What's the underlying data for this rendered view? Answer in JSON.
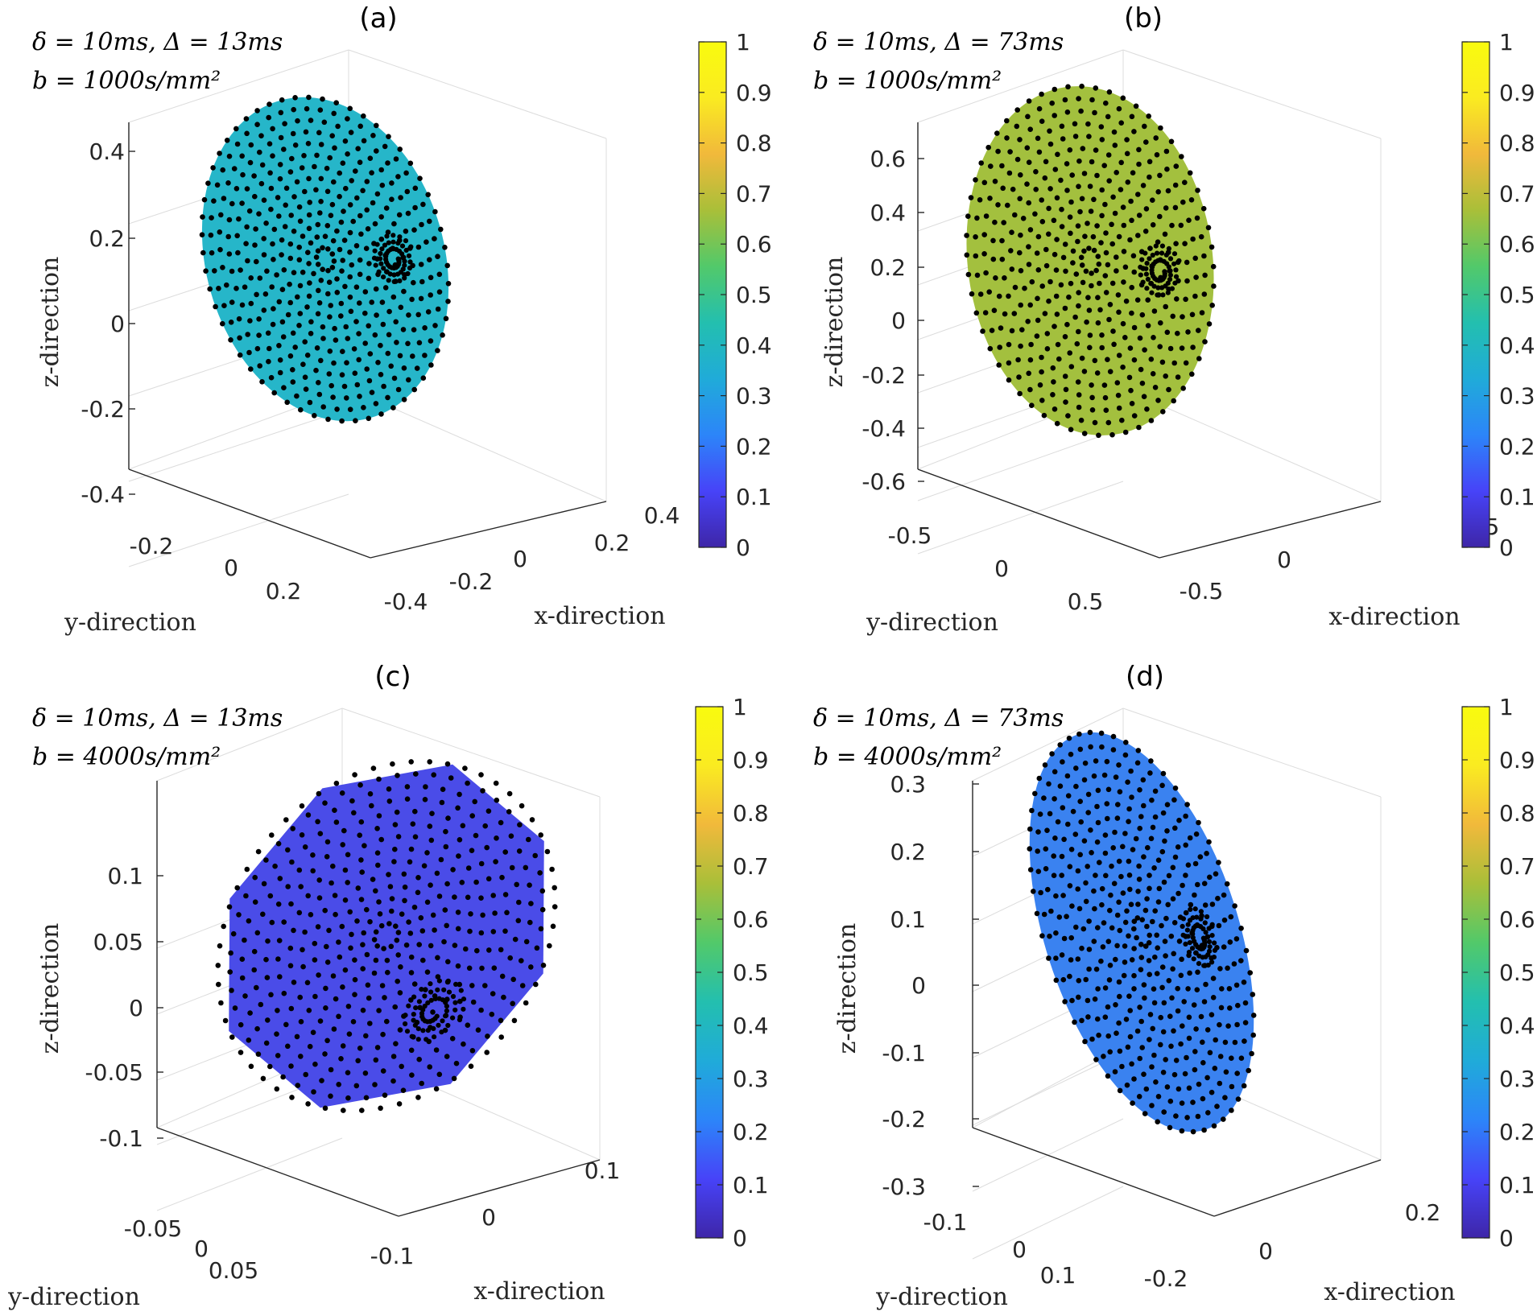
{
  "figure": {
    "colormap": [
      "#3e26a8",
      "#4743f8",
      "#2c85f9",
      "#20abd9",
      "#23bfaf",
      "#52c96a",
      "#a9bf39",
      "#f1b93b",
      "#faeb21",
      "#f9fb0e"
    ],
    "colorbar_ticks": [
      "0",
      "0.1",
      "0.2",
      "0.3",
      "0.4",
      "0.5",
      "0.6",
      "0.7",
      "0.8",
      "0.9",
      "1"
    ],
    "point_color": "#000000"
  },
  "chart_data": [
    {
      "type": "scatter",
      "panel_label": "(a)",
      "annotation_line1": "δ = 10ms,  Δ = 13ms",
      "annotation_line2": "b = 1000s/mm²",
      "zlabel": "z-direction",
      "ylabel": "y-direction",
      "xlabel": "x-direction",
      "z_ticks": [
        "0.4",
        "0.2",
        "0",
        "-0.2",
        "-0.4"
      ],
      "y_ticks": [
        "-0.2",
        "0",
        "0.2"
      ],
      "x_ticks": [
        "0.4",
        "0.2",
        "0",
        "-0.2",
        "-0.4"
      ],
      "zlim": [
        -0.45,
        0.45
      ],
      "surface_value": 0.45,
      "surface_color": "#26b6c9",
      "color_range": [
        0,
        1
      ]
    },
    {
      "type": "scatter",
      "panel_label": "(b)",
      "annotation_line1": "δ = 10ms,  Δ = 73ms",
      "annotation_line2": "b = 1000s/mm²",
      "zlabel": "z-direction",
      "ylabel": "y-direction",
      "xlabel": "x-direction",
      "z_ticks": [
        "0.6",
        "0.4",
        "0.2",
        "0",
        "-0.2",
        "-0.4",
        "-0.6"
      ],
      "y_ticks": [
        "-0.5",
        "0",
        "0.5"
      ],
      "x_ticks": [
        "0.5",
        "0",
        "-0.5"
      ],
      "zlim": [
        -0.72,
        0.72
      ],
      "surface_value": 0.68,
      "surface_color": "#a3c03e",
      "color_range": [
        0,
        1
      ]
    },
    {
      "type": "scatter",
      "panel_label": "(c)",
      "annotation_line1": "δ = 10ms,  Δ = 13ms",
      "annotation_line2": "b = 4000s/mm²",
      "zlabel": "z-direction",
      "ylabel": "y-direction",
      "xlabel": "x-direction",
      "z_ticks": [
        "0.1",
        "0.05",
        "0",
        "-0.05",
        "-0.1"
      ],
      "y_ticks": [
        "-0.05",
        "0",
        "0.05"
      ],
      "x_ticks": [
        "0.1",
        "0",
        "-0.1"
      ],
      "zlim": [
        -0.12,
        0.15
      ],
      "surface_value": 0.08,
      "surface_color": "#4a4ce8",
      "color_range": [
        0,
        1
      ]
    },
    {
      "type": "scatter",
      "panel_label": "(d)",
      "annotation_line1": "δ = 10ms,  Δ = 73ms",
      "annotation_line2": "b = 4000s/mm²",
      "zlabel": "z-direction",
      "ylabel": "y-direction",
      "xlabel": "x-direction",
      "z_ticks": [
        "0.3",
        "0.2",
        "0.1",
        "0",
        "-0.1",
        "-0.2",
        "-0.3"
      ],
      "y_ticks": [
        "-0.1",
        "0",
        "0.1"
      ],
      "x_ticks": [
        "0.2",
        "0",
        "-0.2"
      ],
      "zlim": [
        -0.33,
        0.33
      ],
      "surface_value": 0.25,
      "surface_color": "#3a82f0",
      "color_range": [
        0,
        1
      ]
    }
  ]
}
